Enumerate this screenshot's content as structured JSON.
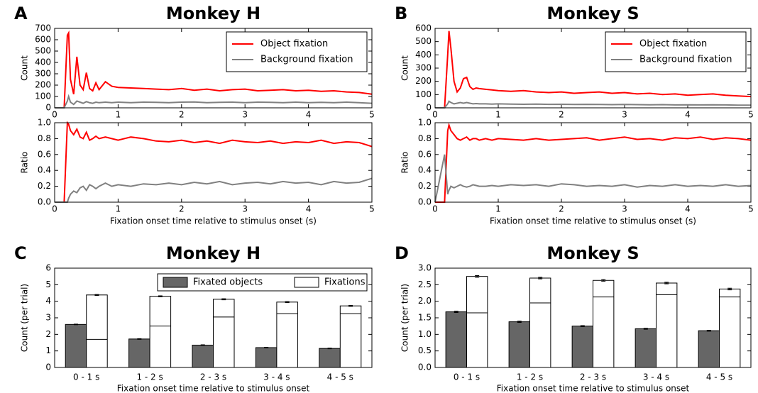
{
  "chart_data": [
    {
      "type": "line",
      "panel": "A",
      "title": "Monkey H",
      "ylabel": "Count",
      "legend": "upper right",
      "x": [
        0,
        0.15,
        0.2,
        0.22,
        0.25,
        0.3,
        0.35,
        0.4,
        0.45,
        0.5,
        0.55,
        0.6,
        0.65,
        0.7,
        0.8,
        0.9,
        1,
        1.2,
        1.4,
        1.6,
        1.8,
        2,
        2.2,
        2.4,
        2.6,
        2.8,
        3,
        3.2,
        3.4,
        3.6,
        3.8,
        4,
        4.2,
        4.4,
        4.6,
        4.8,
        5
      ],
      "series": [
        {
          "name": "Object fixation",
          "color": "#ff0000",
          "values": [
            0,
            0,
            640,
            660,
            250,
            120,
            450,
            200,
            160,
            310,
            170,
            150,
            220,
            160,
            230,
            190,
            180,
            175,
            170,
            165,
            160,
            170,
            155,
            165,
            150,
            160,
            165,
            150,
            155,
            160,
            150,
            155,
            145,
            150,
            140,
            135,
            120
          ]
        },
        {
          "name": "Background fixation",
          "color": "#808080",
          "values": [
            0,
            0,
            60,
            100,
            50,
            30,
            60,
            50,
            40,
            55,
            45,
            40,
            50,
            45,
            50,
            45,
            50,
            45,
            50,
            48,
            45,
            50,
            52,
            45,
            48,
            50,
            45,
            50,
            48,
            45,
            50,
            45,
            48,
            45,
            50,
            45,
            40
          ]
        }
      ],
      "xlim": [
        0,
        5
      ],
      "xticks": [
        0,
        1,
        2,
        3,
        4,
        5
      ],
      "ylim": [
        0,
        700
      ],
      "yticks": [
        0,
        100,
        200,
        300,
        400,
        500,
        600,
        700
      ]
    },
    {
      "type": "line",
      "ylabel": "Ratio",
      "xlabel": "Fixation onset time relative to stimulus onset  (s)",
      "x": [
        0,
        0.15,
        0.2,
        0.22,
        0.25,
        0.3,
        0.35,
        0.4,
        0.45,
        0.5,
        0.55,
        0.6,
        0.65,
        0.7,
        0.8,
        0.9,
        1,
        1.2,
        1.4,
        1.6,
        1.8,
        2,
        2.2,
        2.4,
        2.6,
        2.8,
        3,
        3.2,
        3.4,
        3.6,
        3.8,
        4,
        4.2,
        4.4,
        4.6,
        4.8,
        5
      ],
      "series": [
        {
          "color": "#ff0000",
          "values": [
            0,
            0,
            1.0,
            0.98,
            0.9,
            0.85,
            0.92,
            0.82,
            0.8,
            0.88,
            0.78,
            0.8,
            0.83,
            0.8,
            0.82,
            0.8,
            0.78,
            0.82,
            0.8,
            0.77,
            0.76,
            0.78,
            0.75,
            0.77,
            0.74,
            0.78,
            0.76,
            0.75,
            0.77,
            0.74,
            0.76,
            0.75,
            0.78,
            0.74,
            0.76,
            0.75,
            0.7
          ]
        },
        {
          "color": "#808080",
          "values": [
            0,
            0,
            0.0,
            0.05,
            0.1,
            0.14,
            0.12,
            0.18,
            0.2,
            0.15,
            0.22,
            0.2,
            0.17,
            0.2,
            0.24,
            0.2,
            0.22,
            0.2,
            0.23,
            0.22,
            0.24,
            0.22,
            0.25,
            0.23,
            0.26,
            0.22,
            0.24,
            0.25,
            0.23,
            0.26,
            0.24,
            0.25,
            0.22,
            0.26,
            0.24,
            0.25,
            0.3
          ]
        }
      ],
      "xlim": [
        0,
        5
      ],
      "xticks": [
        0,
        1,
        2,
        3,
        4,
        5
      ],
      "ylim": [
        0,
        1
      ],
      "yticks": [
        {
          "value": 0,
          "label": "0.0"
        },
        {
          "value": 0.2,
          "label": "0.2"
        },
        {
          "value": 0.4,
          "label": "0.4"
        },
        {
          "value": 0.6,
          "label": "0.6"
        },
        {
          "value": 0.8,
          "label": "0.8"
        },
        {
          "value": 1,
          "label": "1.0"
        }
      ]
    },
    {
      "type": "line",
      "panel": "B",
      "title": "Monkey S",
      "ylabel": "Count",
      "legend": "upper right",
      "x": [
        0,
        0.15,
        0.2,
        0.22,
        0.25,
        0.3,
        0.35,
        0.4,
        0.45,
        0.5,
        0.55,
        0.6,
        0.65,
        0.7,
        0.8,
        0.9,
        1,
        1.2,
        1.4,
        1.6,
        1.8,
        2,
        2.2,
        2.4,
        2.6,
        2.8,
        3,
        3.2,
        3.4,
        3.6,
        3.8,
        4,
        4.2,
        4.4,
        4.6,
        4.8,
        5
      ],
      "series": [
        {
          "name": "Object fixation",
          "color": "#ff0000",
          "values": [
            0,
            0,
            400,
            580,
            450,
            200,
            120,
            150,
            220,
            230,
            160,
            140,
            150,
            145,
            140,
            135,
            130,
            125,
            130,
            120,
            115,
            120,
            110,
            115,
            120,
            110,
            115,
            105,
            110,
            100,
            105,
            95,
            100,
            105,
            95,
            90,
            85
          ]
        },
        {
          "name": "Background fixation",
          "color": "#808080",
          "values": [
            0,
            0,
            30,
            50,
            40,
            30,
            35,
            40,
            35,
            40,
            35,
            30,
            32,
            30,
            30,
            28,
            30,
            28,
            27,
            28,
            26,
            27,
            25,
            26,
            25,
            24,
            25,
            24,
            23,
            24,
            22,
            23,
            22,
            23,
            22,
            20,
            20
          ]
        }
      ],
      "xlim": [
        0,
        5
      ],
      "xticks": [
        0,
        1,
        2,
        3,
        4,
        5
      ],
      "ylim": [
        0,
        600
      ],
      "yticks": [
        0,
        100,
        200,
        300,
        400,
        500,
        600
      ]
    },
    {
      "type": "line",
      "ylabel": "Ratio",
      "xlabel": "Fixation onset time relative to stimulus onset  (s)",
      "x": [
        0,
        0.15,
        0.2,
        0.22,
        0.25,
        0.3,
        0.35,
        0.4,
        0.45,
        0.5,
        0.55,
        0.6,
        0.65,
        0.7,
        0.8,
        0.9,
        1,
        1.2,
        1.4,
        1.6,
        1.8,
        2,
        2.2,
        2.4,
        2.6,
        2.8,
        3,
        3.2,
        3.4,
        3.6,
        3.8,
        4,
        4.2,
        4.4,
        4.6,
        4.8,
        5
      ],
      "series": [
        {
          "color": "#ff0000",
          "values": [
            0,
            0,
            0.9,
            0.97,
            0.9,
            0.85,
            0.8,
            0.78,
            0.8,
            0.82,
            0.78,
            0.8,
            0.8,
            0.78,
            0.8,
            0.78,
            0.8,
            0.79,
            0.78,
            0.8,
            0.78,
            0.79,
            0.8,
            0.81,
            0.78,
            0.8,
            0.82,
            0.79,
            0.8,
            0.78,
            0.81,
            0.8,
            0.82,
            0.79,
            0.81,
            0.8,
            0.78
          ]
        },
        {
          "color": "#808080",
          "values": [
            0,
            0.6,
            0.1,
            0.15,
            0.2,
            0.18,
            0.2,
            0.22,
            0.2,
            0.19,
            0.2,
            0.22,
            0.21,
            0.2,
            0.2,
            0.21,
            0.2,
            0.22,
            0.21,
            0.22,
            0.2,
            0.23,
            0.22,
            0.2,
            0.21,
            0.2,
            0.22,
            0.19,
            0.21,
            0.2,
            0.22,
            0.2,
            0.21,
            0.2,
            0.22,
            0.2,
            0.21
          ]
        }
      ],
      "xlim": [
        0,
        5
      ],
      "xticks": [
        0,
        1,
        2,
        3,
        4,
        5
      ],
      "ylim": [
        0,
        1
      ],
      "yticks": [
        {
          "value": 0,
          "label": "0.0"
        },
        {
          "value": 0.2,
          "label": "0.2"
        },
        {
          "value": 0.4,
          "label": "0.4"
        },
        {
          "value": 0.6,
          "label": "0.6"
        },
        {
          "value": 0.8,
          "label": "0.8"
        },
        {
          "value": 1,
          "label": "1.0"
        }
      ]
    },
    {
      "type": "bar",
      "panel": "C",
      "title": "Monkey H",
      "ylabel": "Count (per trial)",
      "xlabel": "Fixation onset time relative to stimulus onset",
      "legend": "upper right",
      "categories": [
        "0 - 1 s",
        "1 - 2 s",
        "2 - 3 s",
        "3 - 4 s",
        "4 - 5 s"
      ],
      "series": [
        {
          "name": "Fixated objects",
          "color": "#666666",
          "values": [
            2.6,
            1.72,
            1.35,
            1.2,
            1.15
          ],
          "errors": [
            0.02,
            0.02,
            0.02,
            0.02,
            0.02
          ]
        },
        {
          "name": "Fixations",
          "color": "#ffffff",
          "values": [
            4.38,
            4.3,
            4.12,
            3.95,
            3.72
          ],
          "errors": [
            0.03,
            0.03,
            0.03,
            0.03,
            0.03
          ]
        },
        {
          "color": "#000000",
          "values": [
            1.7,
            2.5,
            3.05,
            3.25,
            3.25
          ]
        }
      ],
      "ylim": [
        0,
        6
      ],
      "yticks": [
        0,
        1,
        2,
        3,
        4,
        5,
        6
      ]
    },
    {
      "type": "bar",
      "panel": "D",
      "title": "Monkey S",
      "ylabel": "Count (per trial)",
      "xlabel": "Fixation onset time relative to stimulus onset",
      "categories": [
        "0 - 1 s",
        "1 - 2 s",
        "2 - 3 s",
        "3 - 4 s",
        "4 - 5 s"
      ],
      "series": [
        {
          "color": "#666666",
          "values": [
            1.68,
            1.38,
            1.25,
            1.17,
            1.11
          ],
          "errors": [
            0.02,
            0.02,
            0.015,
            0.015,
            0.015
          ]
        },
        {
          "color": "#ffffff",
          "values": [
            2.75,
            2.7,
            2.63,
            2.55,
            2.37
          ],
          "errors": [
            0.025,
            0.025,
            0.025,
            0.025,
            0.025
          ]
        },
        {
          "color": "#000000",
          "values": [
            1.65,
            1.95,
            2.13,
            2.2,
            2.13
          ]
        }
      ],
      "ylim": [
        0,
        3
      ],
      "yticks": [
        {
          "value": 0,
          "label": "0.0"
        },
        {
          "value": 0.5,
          "label": "0.5"
        },
        {
          "value": 1,
          "label": "1.0"
        },
        {
          "value": 1.5,
          "label": "1.5"
        },
        {
          "value": 2,
          "label": "2.0"
        },
        {
          "value": 2.5,
          "label": "2.5"
        },
        {
          "value": 3,
          "label": "3.0"
        }
      ]
    }
  ]
}
